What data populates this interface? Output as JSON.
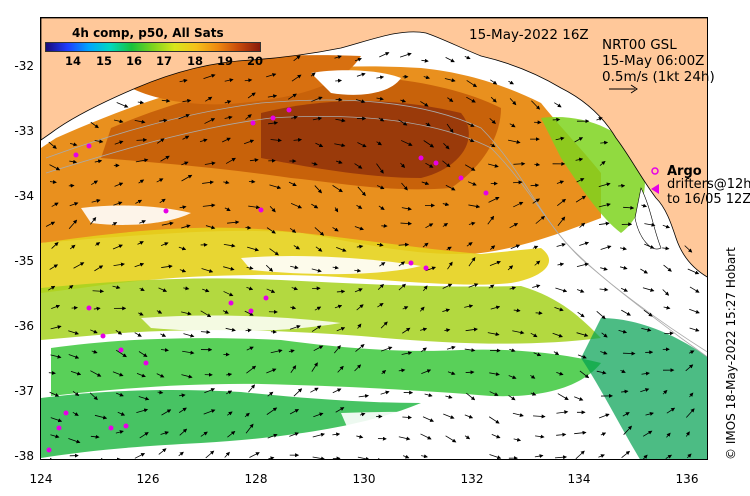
{
  "map": {
    "colorbar_title": "4h comp, p50, All Sats",
    "colorbar_ticks": [
      "14",
      "15",
      "16",
      "17",
      "18",
      "19",
      "20"
    ],
    "timestamp": "15-May-2022 16Z",
    "current_source": "NRT00 GSL",
    "current_time": "15-May 06:00Z",
    "current_scale": "0.5m/s (1kt 24h)",
    "argo_label": "Argo",
    "drifters_line1": "drifters@12h",
    "drifters_line2": "to 16/05 12Z",
    "credit": "© IMOS 18-May-2022 15:27 Hobart",
    "lat_ticks": [
      "-32",
      "-33",
      "-34",
      "-35",
      "-36",
      "-37",
      "-38"
    ],
    "lon_ticks": [
      "124",
      "126",
      "128",
      "130",
      "132",
      "134",
      "136"
    ],
    "colors": {
      "land": "#ffc89a",
      "argo": "#e600e6",
      "cold": "#19c23c",
      "warm": "#c0580a"
    }
  }
}
